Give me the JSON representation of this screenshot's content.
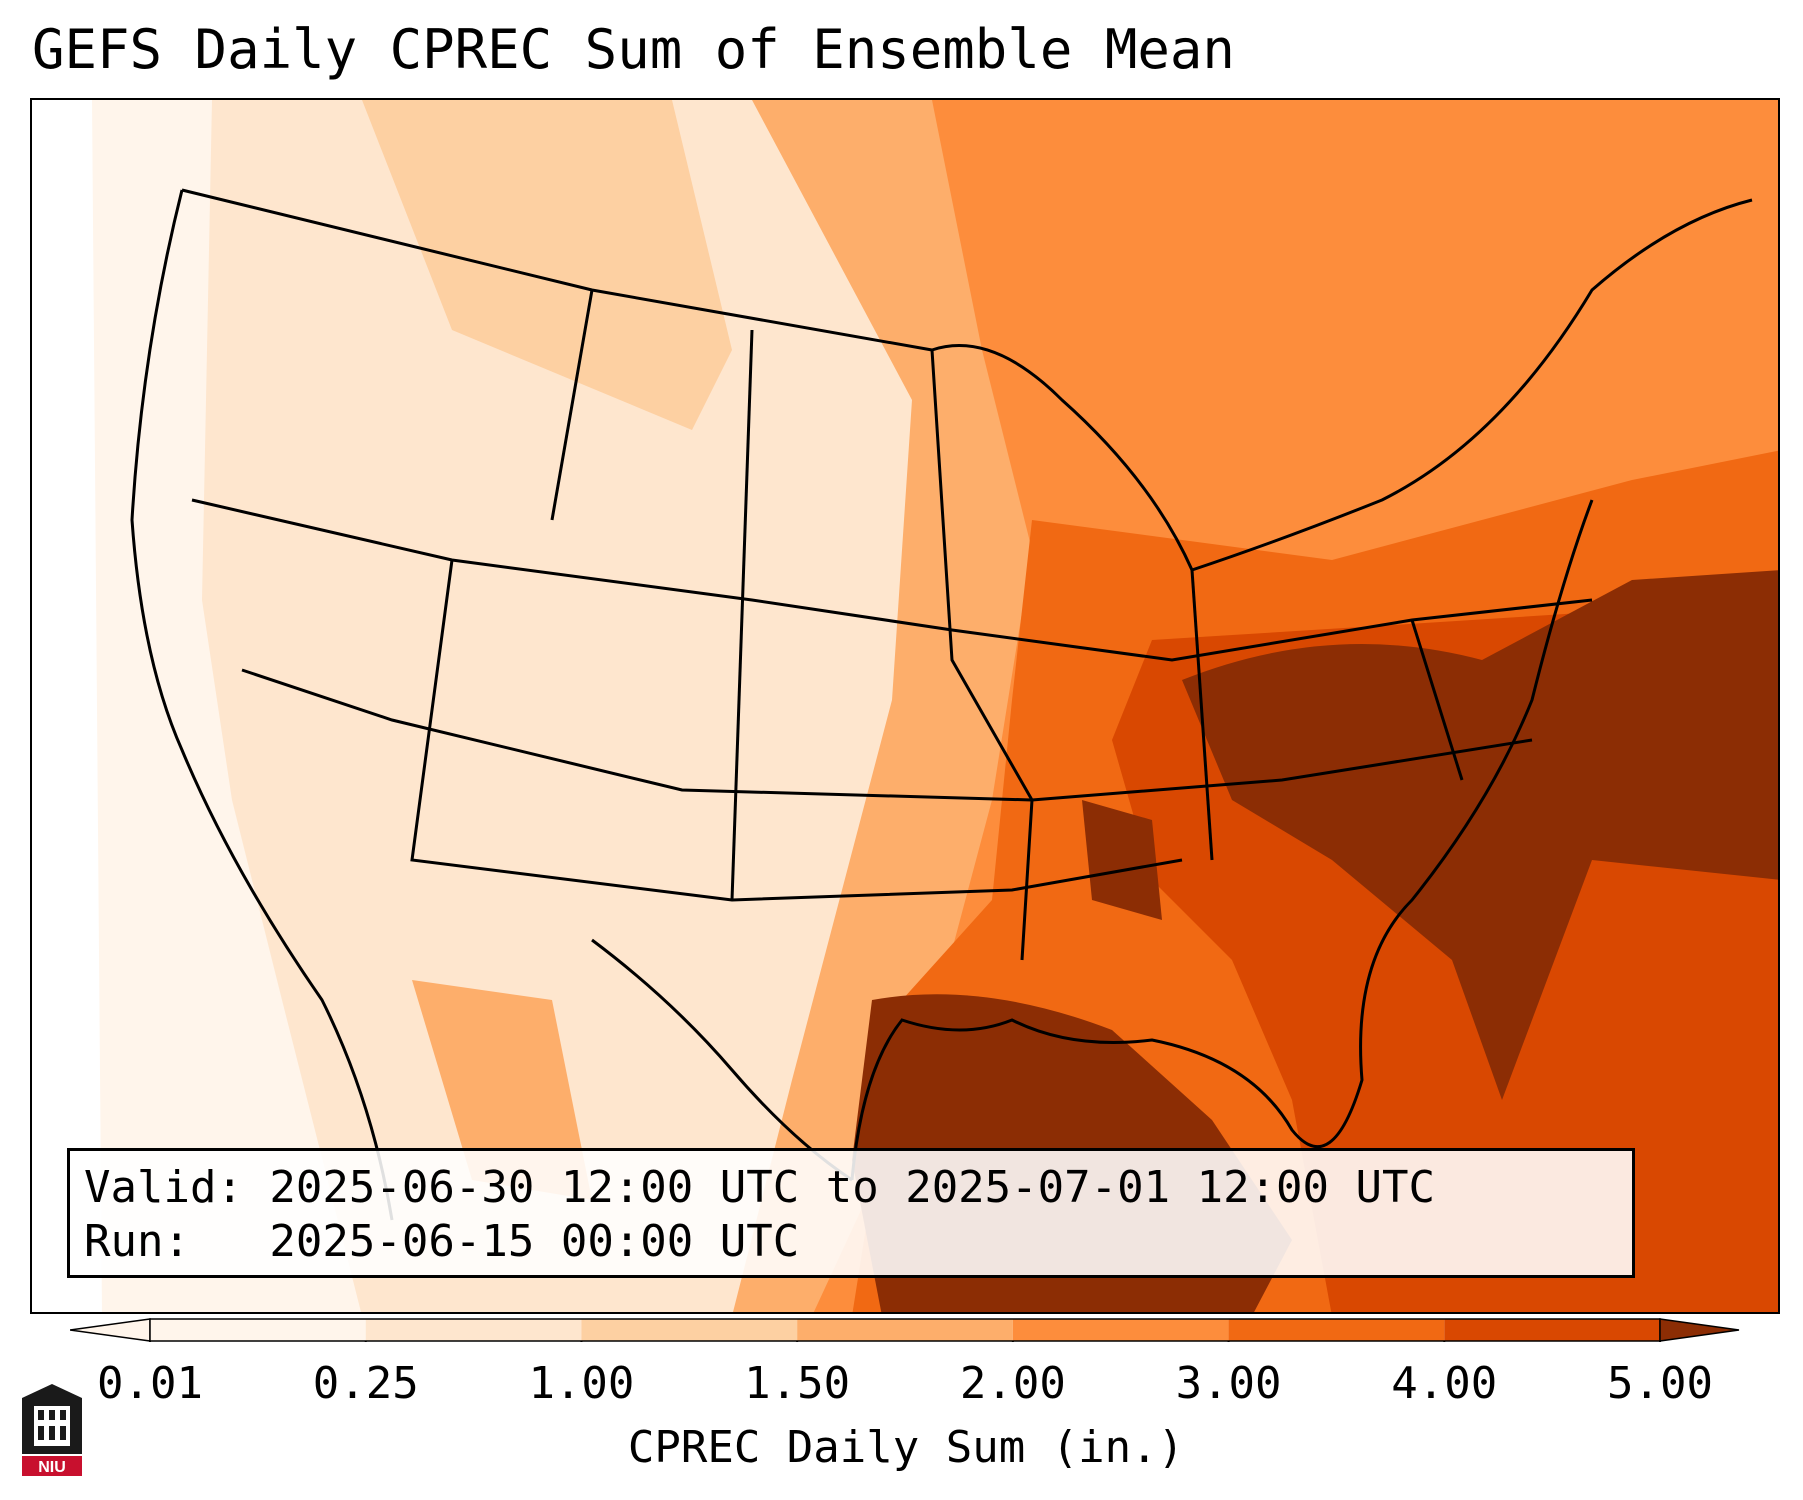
{
  "title": "GEFS Daily CPREC Sum of Ensemble Mean",
  "valid": "Valid: 2025-06-30 12:00 UTC to 2025-07-01 12:00 UTC",
  "run": "Run:   2025-06-15 00:00 UTC",
  "colorbar": {
    "label": "CPREC Daily Sum (in.)",
    "ticks": [
      "0.01",
      "0.25",
      "1.00",
      "1.50",
      "2.00",
      "3.00",
      "4.00",
      "5.00"
    ],
    "colors": [
      "#fff5eb",
      "#fee6ce",
      "#fdd0a2",
      "#fdae6b",
      "#fd8d3c",
      "#f16913",
      "#d94801",
      "#8c2d04"
    ],
    "extend": "both"
  },
  "logo": {
    "text": "NIU",
    "icon": "niu-tower-logo-icon"
  }
}
